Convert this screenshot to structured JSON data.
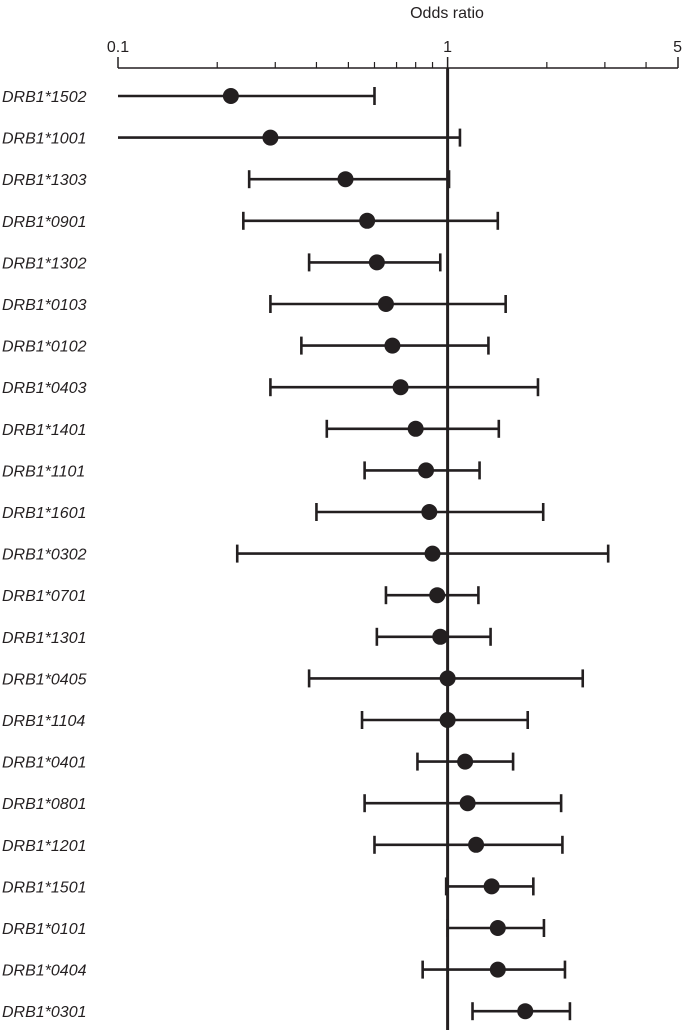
{
  "chart_data": {
    "type": "forest",
    "title": "",
    "xlabel": "Odds ratio",
    "ylabel": "",
    "x_scale": "log",
    "xlim": [
      0.1,
      5
    ],
    "x_tick_labels": [
      {
        "value": 0.1,
        "label": "0.1"
      },
      {
        "value": 1,
        "label": "1"
      },
      {
        "value": 5,
        "label": "5"
      }
    ],
    "x_minor_ticks": [
      0.2,
      0.3,
      0.4,
      0.5,
      0.6,
      0.7,
      0.8,
      0.9,
      2,
      3,
      4
    ],
    "reference_line": 1,
    "grid": false,
    "rows": [
      {
        "label": "DRB1*1502",
        "or": 0.22,
        "lo": 0.1,
        "hi": 0.6
      },
      {
        "label": "DRB1*1001",
        "or": 0.29,
        "lo": 0.1,
        "hi": 1.09
      },
      {
        "label": "DRB1*1303",
        "or": 0.49,
        "lo": 0.25,
        "hi": 1.01
      },
      {
        "label": "DRB1*0901",
        "or": 0.57,
        "lo": 0.24,
        "hi": 1.42
      },
      {
        "label": "DRB1*1302",
        "or": 0.61,
        "lo": 0.38,
        "hi": 0.95
      },
      {
        "label": "DRB1*0103",
        "or": 0.65,
        "lo": 0.29,
        "hi": 1.5
      },
      {
        "label": "DRB1*0102",
        "or": 0.68,
        "lo": 0.36,
        "hi": 1.33
      },
      {
        "label": "DRB1*0403",
        "or": 0.72,
        "lo": 0.29,
        "hi": 1.88
      },
      {
        "label": "DRB1*1401",
        "or": 0.8,
        "lo": 0.43,
        "hi": 1.43
      },
      {
        "label": "DRB1*1101",
        "or": 0.86,
        "lo": 0.56,
        "hi": 1.25
      },
      {
        "label": "DRB1*1601",
        "or": 0.88,
        "lo": 0.4,
        "hi": 1.95
      },
      {
        "label": "DRB1*0302",
        "or": 0.9,
        "lo": 0.23,
        "hi": 3.07
      },
      {
        "label": "DRB1*0701",
        "or": 0.93,
        "lo": 0.65,
        "hi": 1.24
      },
      {
        "label": "DRB1*1301",
        "or": 0.95,
        "lo": 0.61,
        "hi": 1.35
      },
      {
        "label": "DRB1*0405",
        "or": 1.0,
        "lo": 0.38,
        "hi": 2.57
      },
      {
        "label": "DRB1*1104",
        "or": 1.0,
        "lo": 0.55,
        "hi": 1.75
      },
      {
        "label": "DRB1*0401",
        "or": 1.13,
        "lo": 0.81,
        "hi": 1.58
      },
      {
        "label": "DRB1*0801",
        "or": 1.15,
        "lo": 0.56,
        "hi": 2.21
      },
      {
        "label": "DRB1*1201",
        "or": 1.22,
        "lo": 0.6,
        "hi": 2.23
      },
      {
        "label": "DRB1*1501",
        "or": 1.36,
        "lo": 0.99,
        "hi": 1.82
      },
      {
        "label": "DRB1*0101",
        "or": 1.42,
        "lo": 1.0,
        "hi": 1.96
      },
      {
        "label": "DRB1*0404",
        "or": 1.42,
        "lo": 0.84,
        "hi": 2.27
      },
      {
        "label": "DRB1*0301",
        "or": 1.72,
        "lo": 1.19,
        "hi": 2.35
      }
    ]
  }
}
